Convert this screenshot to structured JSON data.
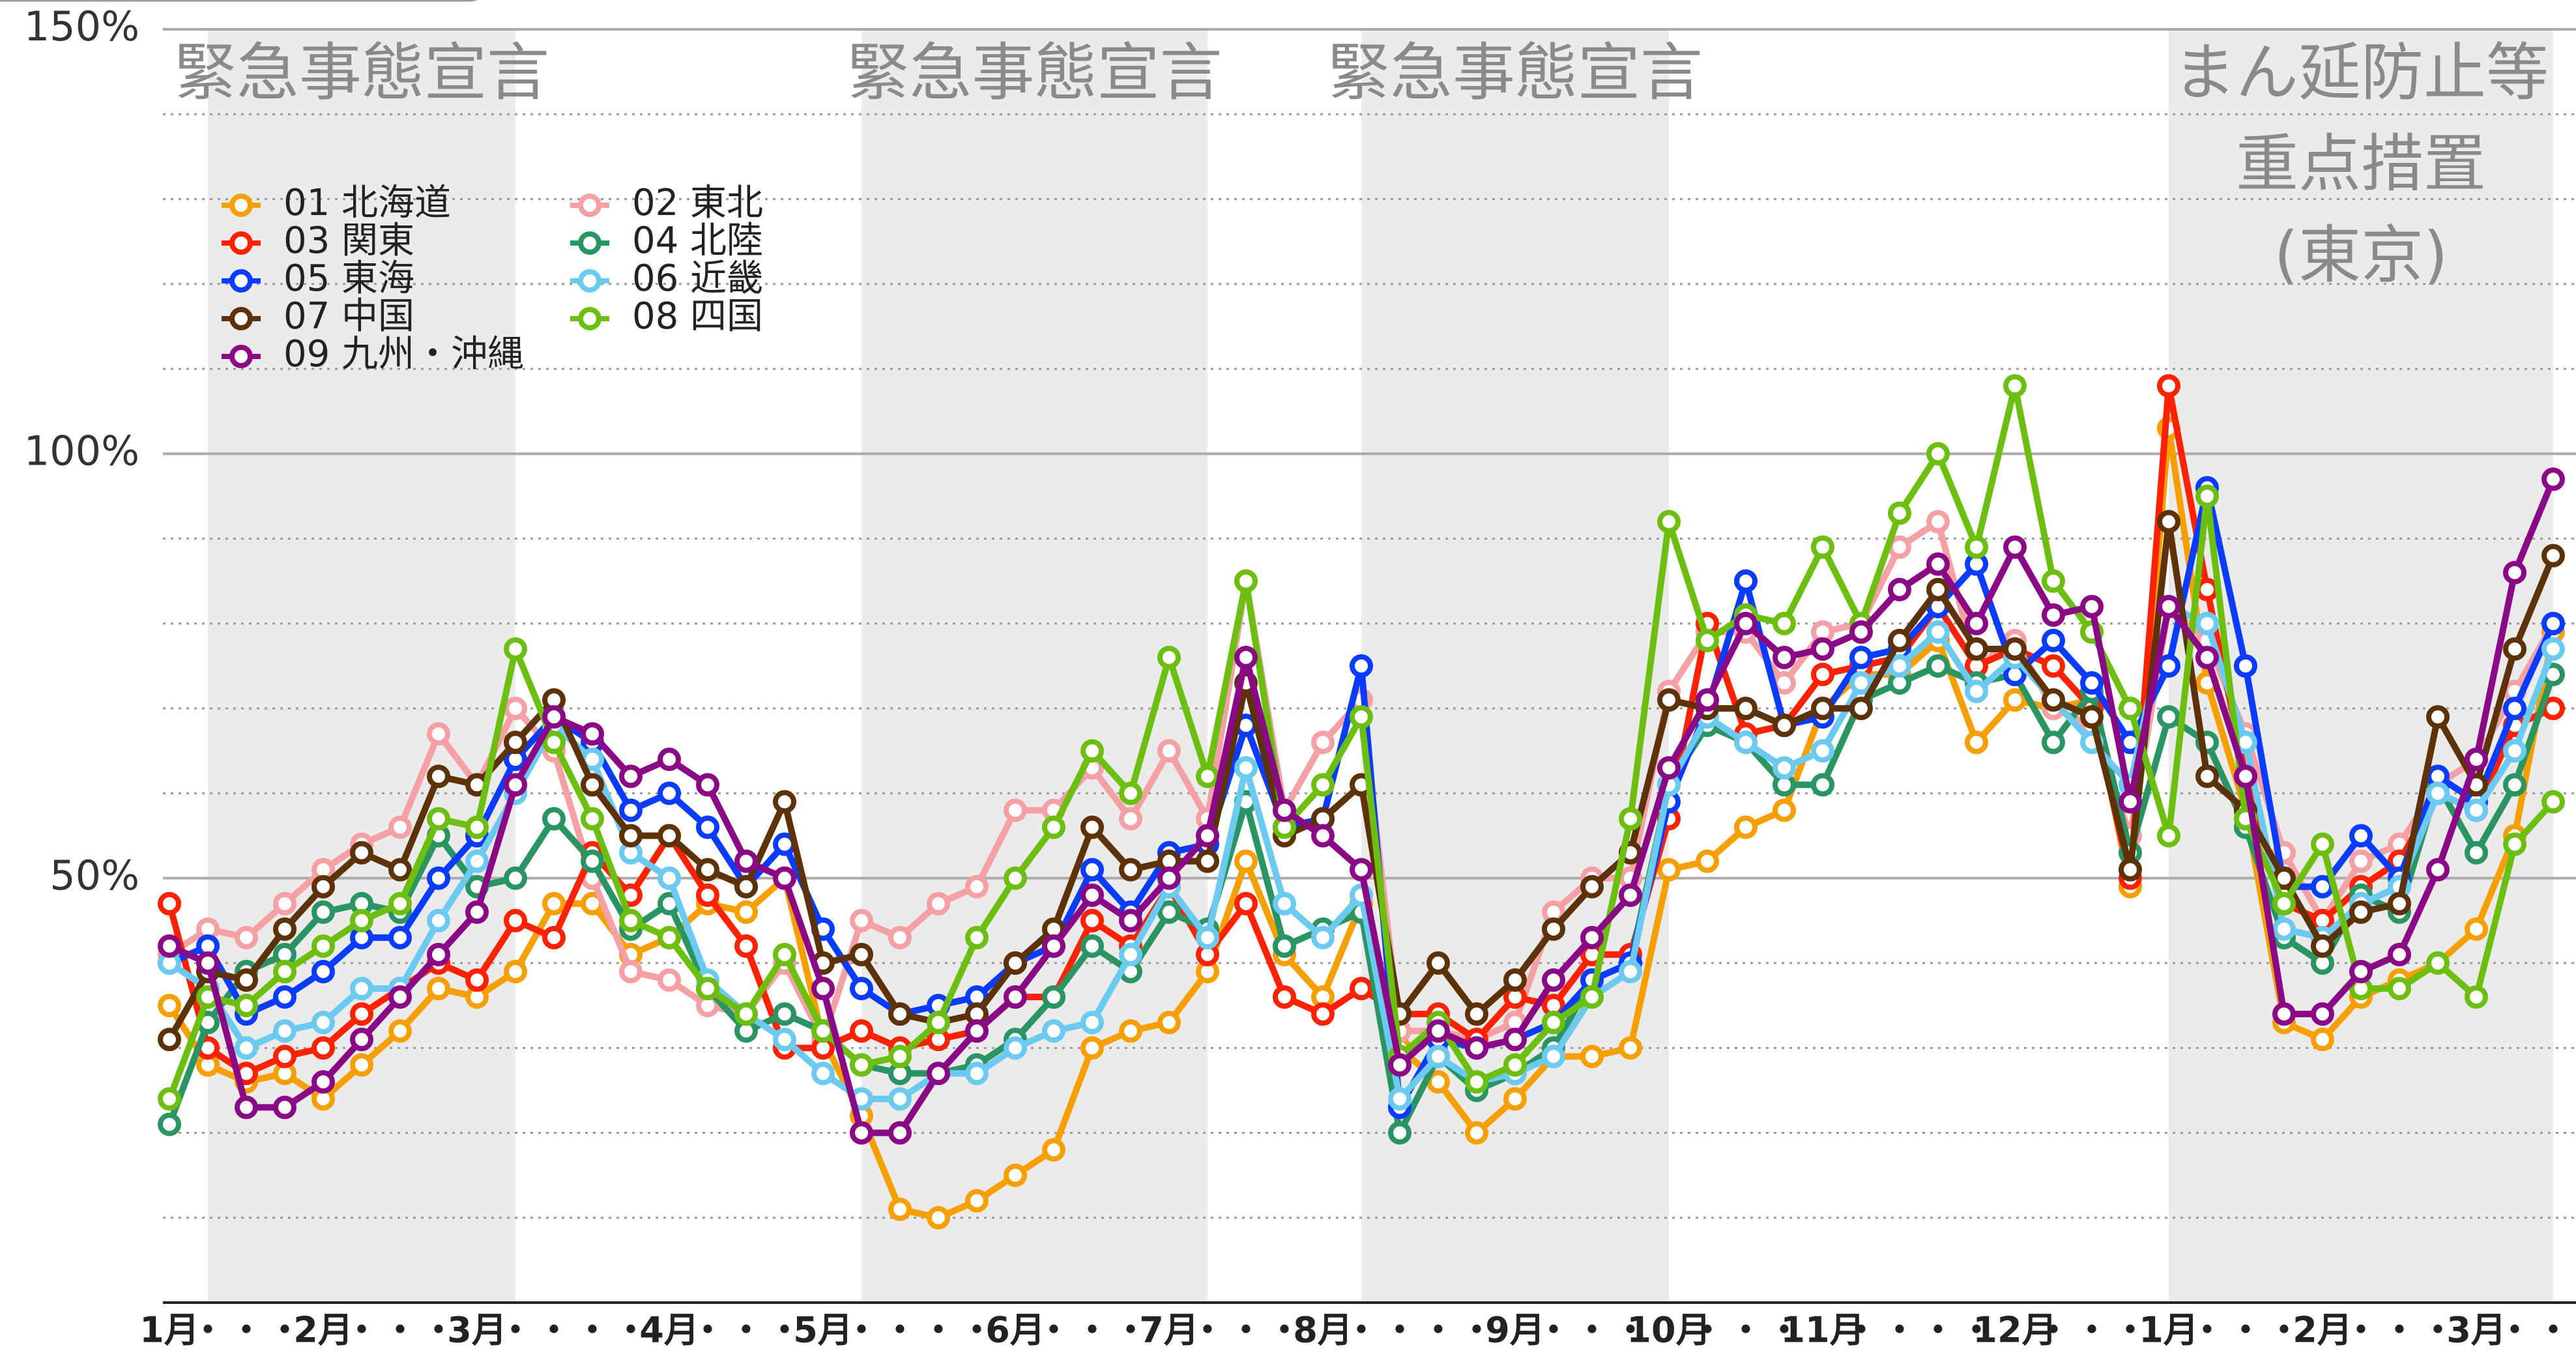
{
  "chart_data": {
    "type": "line",
    "categories": [
      "1月",
      "・",
      "・",
      "・",
      "2月",
      "・",
      "・",
      "・",
      "3月",
      "・",
      "・",
      "・",
      "・",
      "4月",
      "・",
      "・",
      "・",
      "5月",
      "・",
      "・",
      "・",
      "・",
      "6月",
      "・",
      "・",
      "・",
      "7月",
      "・",
      "・",
      "・",
      "8月",
      "・",
      "・",
      "・",
      "・",
      "9月",
      "・",
      "・",
      "・",
      "10月",
      "・",
      "・",
      "・",
      "11月",
      "・",
      "・",
      "・",
      "・",
      "12月",
      "・",
      "・",
      "・",
      "1月",
      "・",
      "・",
      "・",
      "2月",
      "・",
      "・",
      "・",
      "3月",
      "・",
      "・"
    ],
    "ylim": [
      0,
      150
    ],
    "yticks": [
      {
        "value": 50,
        "label": "50%"
      },
      {
        "value": 100,
        "label": "100%"
      },
      {
        "value": 150,
        "label": "150%"
      }
    ],
    "minor_yticks": [
      10,
      20,
      30,
      40,
      60,
      70,
      80,
      90,
      110,
      120,
      130,
      140
    ],
    "grid": true,
    "legend": "upper left",
    "annotations": [
      {
        "label": [
          "緊急事態宣言"
        ],
        "start": 1,
        "end": 9
      },
      {
        "label": [
          "緊急事態宣言"
        ],
        "start": 18,
        "end": 27
      },
      {
        "label": [
          "緊急事態宣言"
        ],
        "start": 31,
        "end": 39
      },
      {
        "label": [
          "まん延防止等",
          "重点措置",
          "(東京)"
        ],
        "start": 52,
        "end": 62
      }
    ],
    "series": [
      {
        "name": "01 北海道",
        "color": "#f5a000",
        "values": [
          35,
          28,
          26,
          27,
          24,
          28,
          32,
          37,
          36,
          39,
          47,
          47,
          41,
          43,
          47,
          46,
          50,
          31,
          22,
          11,
          10,
          12,
          15,
          18,
          30,
          32,
          33,
          39,
          52,
          41,
          36,
          47,
          30,
          26,
          20,
          24,
          29,
          29,
          30,
          51,
          52,
          56,
          58,
          70,
          74,
          74,
          78,
          66,
          71,
          70,
          71,
          49,
          103,
          73,
          58,
          33,
          31,
          36,
          38,
          40,
          44,
          55,
          79
        ]
      },
      {
        "name": "02 東北",
        "color": "#f4a0a4",
        "values": [
          41,
          44,
          43,
          47,
          51,
          54,
          56,
          67,
          61,
          70,
          65,
          50,
          39,
          38,
          35,
          34,
          40,
          31,
          45,
          43,
          47,
          49,
          58,
          58,
          63,
          57,
          65,
          57,
          85,
          58,
          66,
          71,
          32,
          32,
          31,
          33,
          46,
          50,
          50,
          72,
          79,
          79,
          73,
          79,
          80,
          89,
          92,
          75,
          78,
          70,
          68,
          55,
          82,
          78,
          67,
          53,
          45,
          52,
          54,
          61,
          64,
          72,
          80
        ]
      },
      {
        "name": "03 関東",
        "color": "#ff2200",
        "values": [
          47,
          30,
          27,
          29,
          30,
          34,
          37,
          40,
          38,
          45,
          43,
          53,
          48,
          55,
          48,
          42,
          30,
          30,
          32,
          30,
          31,
          32,
          36,
          36,
          45,
          42,
          49,
          41,
          47,
          36,
          34,
          37,
          34,
          34,
          31,
          36,
          35,
          41,
          41,
          57,
          80,
          67,
          68,
          74,
          75,
          76,
          82,
          75,
          77,
          75,
          70,
          50,
          108,
          84,
          62,
          47,
          45,
          49,
          52,
          60,
          58,
          68,
          70
        ]
      },
      {
        "name": "04 北陸",
        "color": "#2a9463",
        "values": [
          21,
          33,
          39,
          41,
          46,
          47,
          46,
          55,
          49,
          50,
          57,
          52,
          44,
          47,
          37,
          32,
          34,
          32,
          28,
          27,
          27,
          28,
          31,
          36,
          42,
          39,
          46,
          44,
          59,
          42,
          44,
          46,
          20,
          29,
          25,
          27,
          30,
          38,
          40,
          61,
          68,
          66,
          61,
          61,
          71,
          73,
          75,
          73,
          74,
          66,
          72,
          53,
          69,
          66,
          56,
          43,
          40,
          48,
          46,
          61,
          53,
          61,
          74
        ]
      },
      {
        "name": "05 東海",
        "color": "#0a3cff",
        "values": [
          40,
          42,
          34,
          36,
          39,
          43,
          43,
          50,
          55,
          64,
          69,
          66,
          58,
          60,
          56,
          49,
          54,
          44,
          37,
          34,
          35,
          36,
          40,
          42,
          51,
          46,
          53,
          54,
          68,
          56,
          57,
          75,
          23,
          31,
          30,
          31,
          33,
          38,
          40,
          59,
          70,
          85,
          68,
          69,
          76,
          77,
          82,
          87,
          74,
          78,
          73,
          66,
          75,
          96,
          75,
          49,
          49,
          55,
          50,
          62,
          59,
          70,
          80
        ]
      },
      {
        "name": "06 近畿",
        "color": "#6ccaf0",
        "values": [
          40,
          37,
          30,
          32,
          33,
          37,
          37,
          45,
          52,
          60,
          68,
          64,
          53,
          50,
          38,
          34,
          31,
          27,
          24,
          24,
          27,
          27,
          30,
          32,
          33,
          41,
          49,
          43,
          63,
          47,
          43,
          48,
          24,
          29,
          26,
          27,
          29,
          36,
          39,
          61,
          69,
          66,
          63,
          65,
          73,
          75,
          79,
          72,
          76,
          71,
          66,
          61,
          82,
          80,
          66,
          44,
          43,
          47,
          49,
          60,
          58,
          65,
          77
        ]
      },
      {
        "name": "07 中国",
        "color": "#5e3208",
        "values": [
          31,
          39,
          38,
          44,
          49,
          53,
          51,
          62,
          61,
          66,
          71,
          61,
          55,
          55,
          51,
          49,
          59,
          40,
          41,
          34,
          33,
          34,
          40,
          44,
          56,
          51,
          52,
          52,
          73,
          55,
          57,
          61,
          34,
          40,
          34,
          38,
          44,
          49,
          53,
          71,
          70,
          70,
          68,
          70,
          70,
          78,
          84,
          77,
          77,
          71,
          69,
          51,
          92,
          62,
          58,
          50,
          42,
          46,
          47,
          69,
          61,
          77,
          88
        ]
      },
      {
        "name": "08 四国",
        "color": "#6cbf10",
        "values": [
          24,
          36,
          35,
          39,
          42,
          45,
          47,
          57,
          56,
          77,
          66,
          57,
          45,
          43,
          37,
          34,
          41,
          32,
          28,
          29,
          33,
          43,
          50,
          56,
          65,
          60,
          76,
          62,
          85,
          56,
          61,
          69,
          29,
          33,
          26,
          28,
          33,
          36,
          57,
          92,
          78,
          81,
          80,
          89,
          80,
          93,
          100,
          89,
          108,
          85,
          79,
          70,
          55,
          95,
          57,
          47,
          54,
          37,
          37,
          40,
          36,
          54,
          59
        ]
      },
      {
        "name": "09 九州・沖縄",
        "color": "#8a0a86",
        "values": [
          42,
          40,
          23,
          23,
          26,
          31,
          36,
          41,
          46,
          61,
          69,
          67,
          62,
          64,
          61,
          52,
          50,
          37,
          20,
          20,
          27,
          32,
          36,
          42,
          48,
          45,
          50,
          55,
          76,
          58,
          55,
          51,
          28,
          32,
          30,
          31,
          38,
          43,
          48,
          63,
          71,
          80,
          76,
          77,
          79,
          84,
          87,
          80,
          89,
          81,
          82,
          59,
          82,
          76,
          62,
          34,
          34,
          39,
          41,
          51,
          64,
          86,
          97
        ]
      }
    ]
  }
}
